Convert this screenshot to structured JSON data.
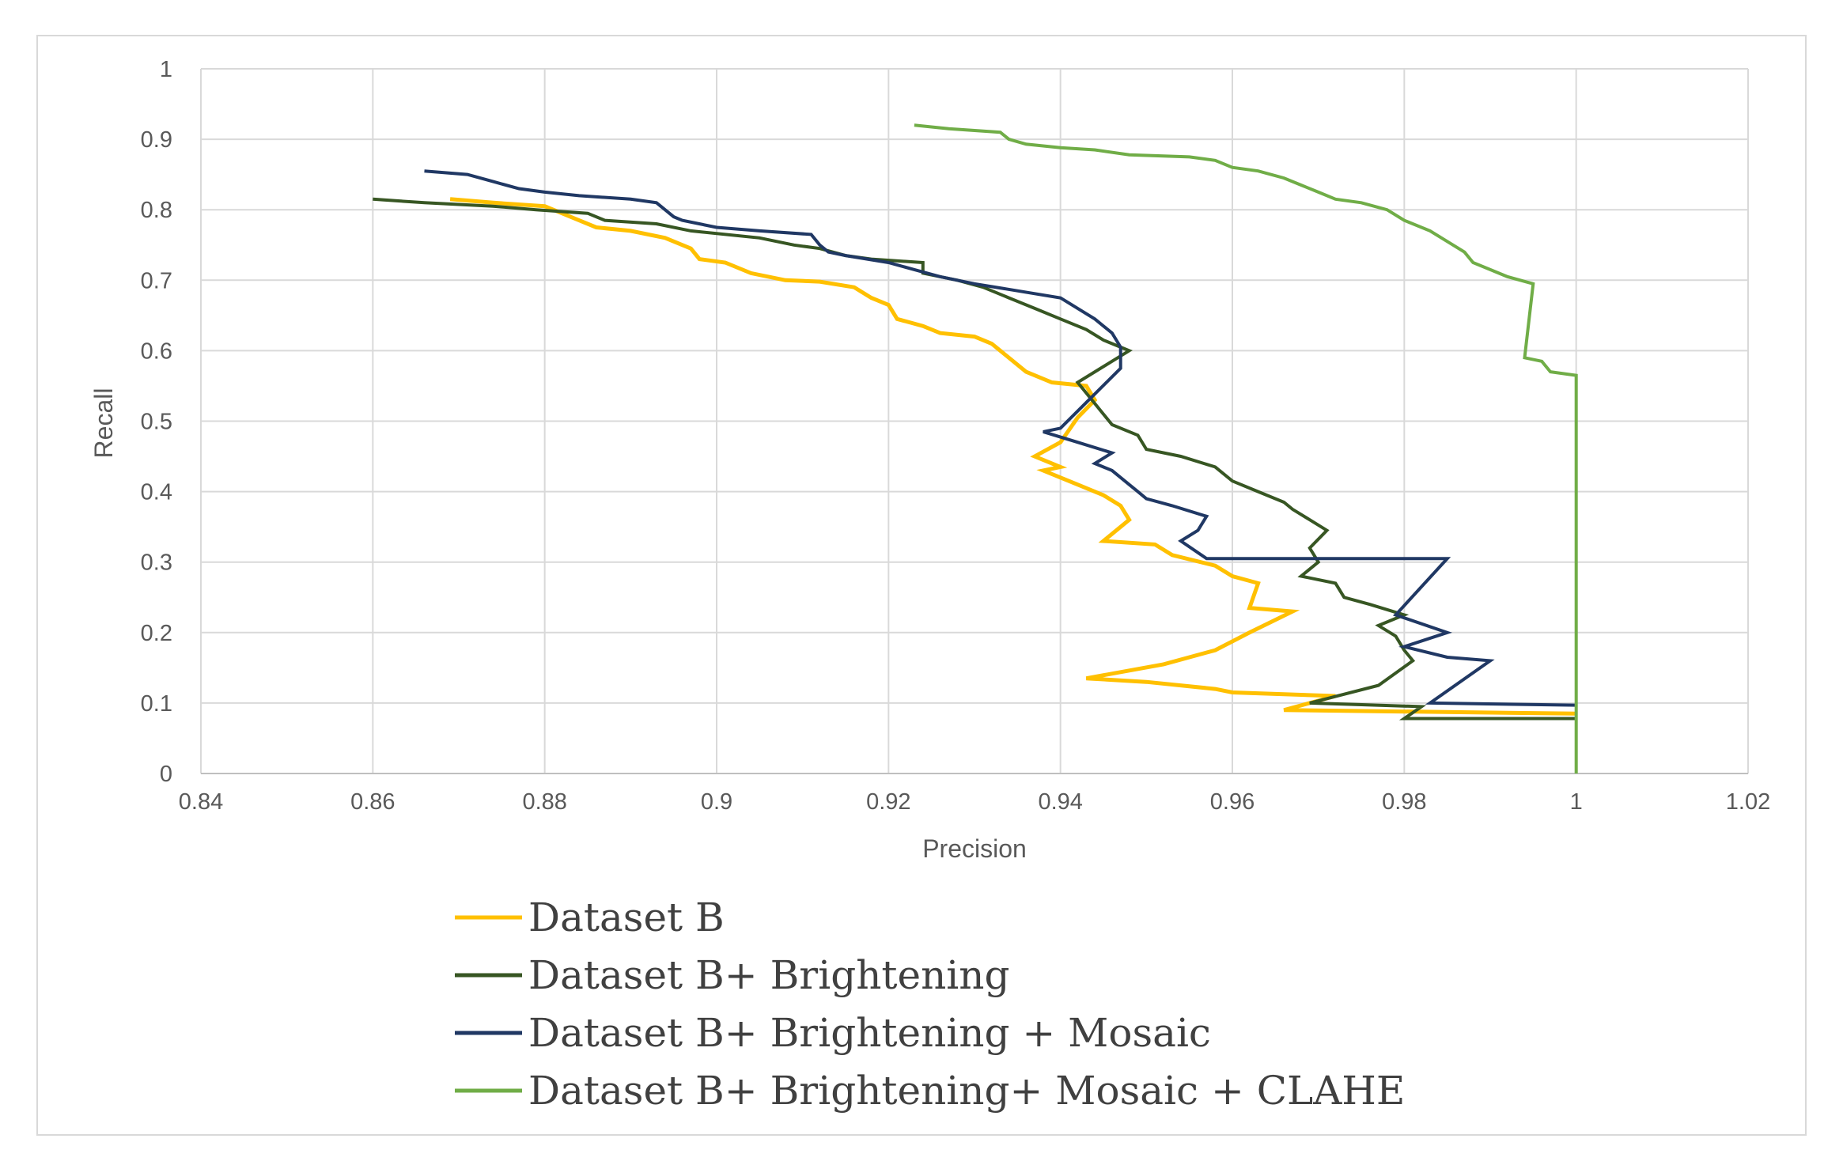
{
  "chart_data": {
    "type": "line",
    "title": "",
    "xlabel": "Precision",
    "ylabel": "Recall",
    "xlim": [
      0.84,
      1.02
    ],
    "ylim": [
      0,
      1
    ],
    "x_ticks": [
      0.84,
      0.86,
      0.88,
      0.9,
      0.92,
      0.94,
      0.96,
      0.98,
      1,
      1.02
    ],
    "x_tick_labels": [
      "0.84",
      "0.86",
      "0.88",
      "0.9",
      "0.92",
      "0.94",
      "0.96",
      "0.98",
      "1",
      "1.02"
    ],
    "y_ticks": [
      0,
      0.1,
      0.2,
      0.3,
      0.4,
      0.5,
      0.6,
      0.7,
      0.8,
      0.9,
      1
    ],
    "y_tick_labels": [
      "0",
      "0.1",
      "0.2",
      "0.3",
      "0.4",
      "0.5",
      "0.6",
      "0.7",
      "0.8",
      "0.9",
      "1"
    ],
    "grid": true,
    "legend_position": "bottom",
    "series": [
      {
        "name": "Dataset B",
        "color": "#ffc000",
        "points": [
          [
            0.869,
            0.815
          ],
          [
            0.874,
            0.81
          ],
          [
            0.88,
            0.805
          ],
          [
            0.884,
            0.785
          ],
          [
            0.886,
            0.775
          ],
          [
            0.89,
            0.77
          ],
          [
            0.894,
            0.76
          ],
          [
            0.897,
            0.745
          ],
          [
            0.898,
            0.73
          ],
          [
            0.901,
            0.725
          ],
          [
            0.904,
            0.71
          ],
          [
            0.908,
            0.7
          ],
          [
            0.912,
            0.698
          ],
          [
            0.916,
            0.69
          ],
          [
            0.918,
            0.675
          ],
          [
            0.92,
            0.665
          ],
          [
            0.921,
            0.645
          ],
          [
            0.924,
            0.635
          ],
          [
            0.926,
            0.625
          ],
          [
            0.93,
            0.62
          ],
          [
            0.932,
            0.61
          ],
          [
            0.934,
            0.59
          ],
          [
            0.936,
            0.57
          ],
          [
            0.939,
            0.555
          ],
          [
            0.943,
            0.55
          ],
          [
            0.944,
            0.53
          ],
          [
            0.942,
            0.505
          ],
          [
            0.94,
            0.47
          ],
          [
            0.937,
            0.45
          ],
          [
            0.94,
            0.435
          ],
          [
            0.938,
            0.43
          ],
          [
            0.942,
            0.41
          ],
          [
            0.945,
            0.395
          ],
          [
            0.947,
            0.38
          ],
          [
            0.948,
            0.36
          ],
          [
            0.945,
            0.33
          ],
          [
            0.951,
            0.325
          ],
          [
            0.953,
            0.31
          ],
          [
            0.958,
            0.295
          ],
          [
            0.96,
            0.28
          ],
          [
            0.963,
            0.27
          ],
          [
            0.962,
            0.235
          ],
          [
            0.967,
            0.23
          ],
          [
            0.962,
            0.2
          ],
          [
            0.958,
            0.175
          ],
          [
            0.952,
            0.155
          ],
          [
            0.943,
            0.135
          ],
          [
            0.95,
            0.13
          ],
          [
            0.958,
            0.12
          ],
          [
            0.96,
            0.115
          ],
          [
            0.972,
            0.11
          ],
          [
            0.966,
            0.09
          ],
          [
            1.0,
            0.085
          ]
        ]
      },
      {
        "name": "Dataset B+ Brightening",
        "color": "#375623",
        "points": [
          [
            0.86,
            0.815
          ],
          [
            0.866,
            0.81
          ],
          [
            0.874,
            0.805
          ],
          [
            0.879,
            0.8
          ],
          [
            0.885,
            0.795
          ],
          [
            0.887,
            0.785
          ],
          [
            0.893,
            0.78
          ],
          [
            0.897,
            0.77
          ],
          [
            0.905,
            0.76
          ],
          [
            0.909,
            0.75
          ],
          [
            0.912,
            0.745
          ],
          [
            0.915,
            0.735
          ],
          [
            0.918,
            0.73
          ],
          [
            0.924,
            0.725
          ],
          [
            0.924,
            0.71
          ],
          [
            0.928,
            0.7
          ],
          [
            0.931,
            0.69
          ],
          [
            0.934,
            0.675
          ],
          [
            0.937,
            0.66
          ],
          [
            0.94,
            0.645
          ],
          [
            0.943,
            0.63
          ],
          [
            0.945,
            0.615
          ],
          [
            0.948,
            0.6
          ],
          [
            0.942,
            0.555
          ],
          [
            0.945,
            0.51
          ],
          [
            0.946,
            0.495
          ],
          [
            0.949,
            0.48
          ],
          [
            0.95,
            0.46
          ],
          [
            0.954,
            0.45
          ],
          [
            0.958,
            0.435
          ],
          [
            0.96,
            0.415
          ],
          [
            0.963,
            0.4
          ],
          [
            0.966,
            0.385
          ],
          [
            0.967,
            0.375
          ],
          [
            0.969,
            0.36
          ],
          [
            0.971,
            0.345
          ],
          [
            0.969,
            0.32
          ],
          [
            0.97,
            0.3
          ],
          [
            0.968,
            0.28
          ],
          [
            0.972,
            0.27
          ],
          [
            0.973,
            0.25
          ],
          [
            0.976,
            0.24
          ],
          [
            0.98,
            0.225
          ],
          [
            0.977,
            0.21
          ],
          [
            0.979,
            0.195
          ],
          [
            0.98,
            0.175
          ],
          [
            0.981,
            0.16
          ],
          [
            0.977,
            0.125
          ],
          [
            0.969,
            0.1
          ],
          [
            0.982,
            0.095
          ],
          [
            0.98,
            0.078
          ],
          [
            1.0,
            0.078
          ]
        ]
      },
      {
        "name": "Dataset B+ Brightening + Mosaic",
        "color": "#203864",
        "points": [
          [
            0.866,
            0.855
          ],
          [
            0.871,
            0.85
          ],
          [
            0.874,
            0.84
          ],
          [
            0.877,
            0.83
          ],
          [
            0.88,
            0.825
          ],
          [
            0.884,
            0.82
          ],
          [
            0.89,
            0.815
          ],
          [
            0.893,
            0.81
          ],
          [
            0.894,
            0.8
          ],
          [
            0.895,
            0.79
          ],
          [
            0.896,
            0.785
          ],
          [
            0.9,
            0.775
          ],
          [
            0.905,
            0.77
          ],
          [
            0.911,
            0.765
          ],
          [
            0.912,
            0.75
          ],
          [
            0.913,
            0.74
          ],
          [
            0.915,
            0.735
          ],
          [
            0.92,
            0.725
          ],
          [
            0.923,
            0.715
          ],
          [
            0.926,
            0.705
          ],
          [
            0.93,
            0.695
          ],
          [
            0.935,
            0.685
          ],
          [
            0.94,
            0.675
          ],
          [
            0.942,
            0.66
          ],
          [
            0.944,
            0.645
          ],
          [
            0.946,
            0.625
          ],
          [
            0.947,
            0.605
          ],
          [
            0.947,
            0.575
          ],
          [
            0.94,
            0.49
          ],
          [
            0.938,
            0.485
          ],
          [
            0.942,
            0.47
          ],
          [
            0.946,
            0.455
          ],
          [
            0.944,
            0.44
          ],
          [
            0.946,
            0.43
          ],
          [
            0.948,
            0.41
          ],
          [
            0.949,
            0.4
          ],
          [
            0.95,
            0.39
          ],
          [
            0.953,
            0.38
          ],
          [
            0.957,
            0.365
          ],
          [
            0.956,
            0.345
          ],
          [
            0.954,
            0.33
          ],
          [
            0.957,
            0.305
          ],
          [
            0.985,
            0.305
          ],
          [
            0.979,
            0.225
          ],
          [
            0.985,
            0.2
          ],
          [
            0.98,
            0.18
          ],
          [
            0.985,
            0.165
          ],
          [
            0.99,
            0.16
          ],
          [
            0.983,
            0.1
          ],
          [
            1.0,
            0.097
          ]
        ]
      },
      {
        "name": "Dataset B+ Brightening+ Mosaic + CLAHE",
        "color": "#70ad47",
        "points": [
          [
            0.923,
            0.92
          ],
          [
            0.927,
            0.915
          ],
          [
            0.933,
            0.91
          ],
          [
            0.934,
            0.9
          ],
          [
            0.936,
            0.893
          ],
          [
            0.94,
            0.888
          ],
          [
            0.944,
            0.885
          ],
          [
            0.948,
            0.878
          ],
          [
            0.955,
            0.875
          ],
          [
            0.958,
            0.87
          ],
          [
            0.96,
            0.86
          ],
          [
            0.963,
            0.855
          ],
          [
            0.966,
            0.845
          ],
          [
            0.968,
            0.835
          ],
          [
            0.97,
            0.825
          ],
          [
            0.972,
            0.815
          ],
          [
            0.975,
            0.81
          ],
          [
            0.978,
            0.8
          ],
          [
            0.98,
            0.785
          ],
          [
            0.983,
            0.77
          ],
          [
            0.985,
            0.755
          ],
          [
            0.987,
            0.74
          ],
          [
            0.988,
            0.725
          ],
          [
            0.99,
            0.715
          ],
          [
            0.992,
            0.705
          ],
          [
            0.995,
            0.695
          ],
          [
            0.994,
            0.59
          ],
          [
            0.996,
            0.585
          ],
          [
            0.997,
            0.57
          ],
          [
            1.0,
            0.565
          ],
          [
            1.0,
            0.0
          ]
        ]
      }
    ]
  }
}
